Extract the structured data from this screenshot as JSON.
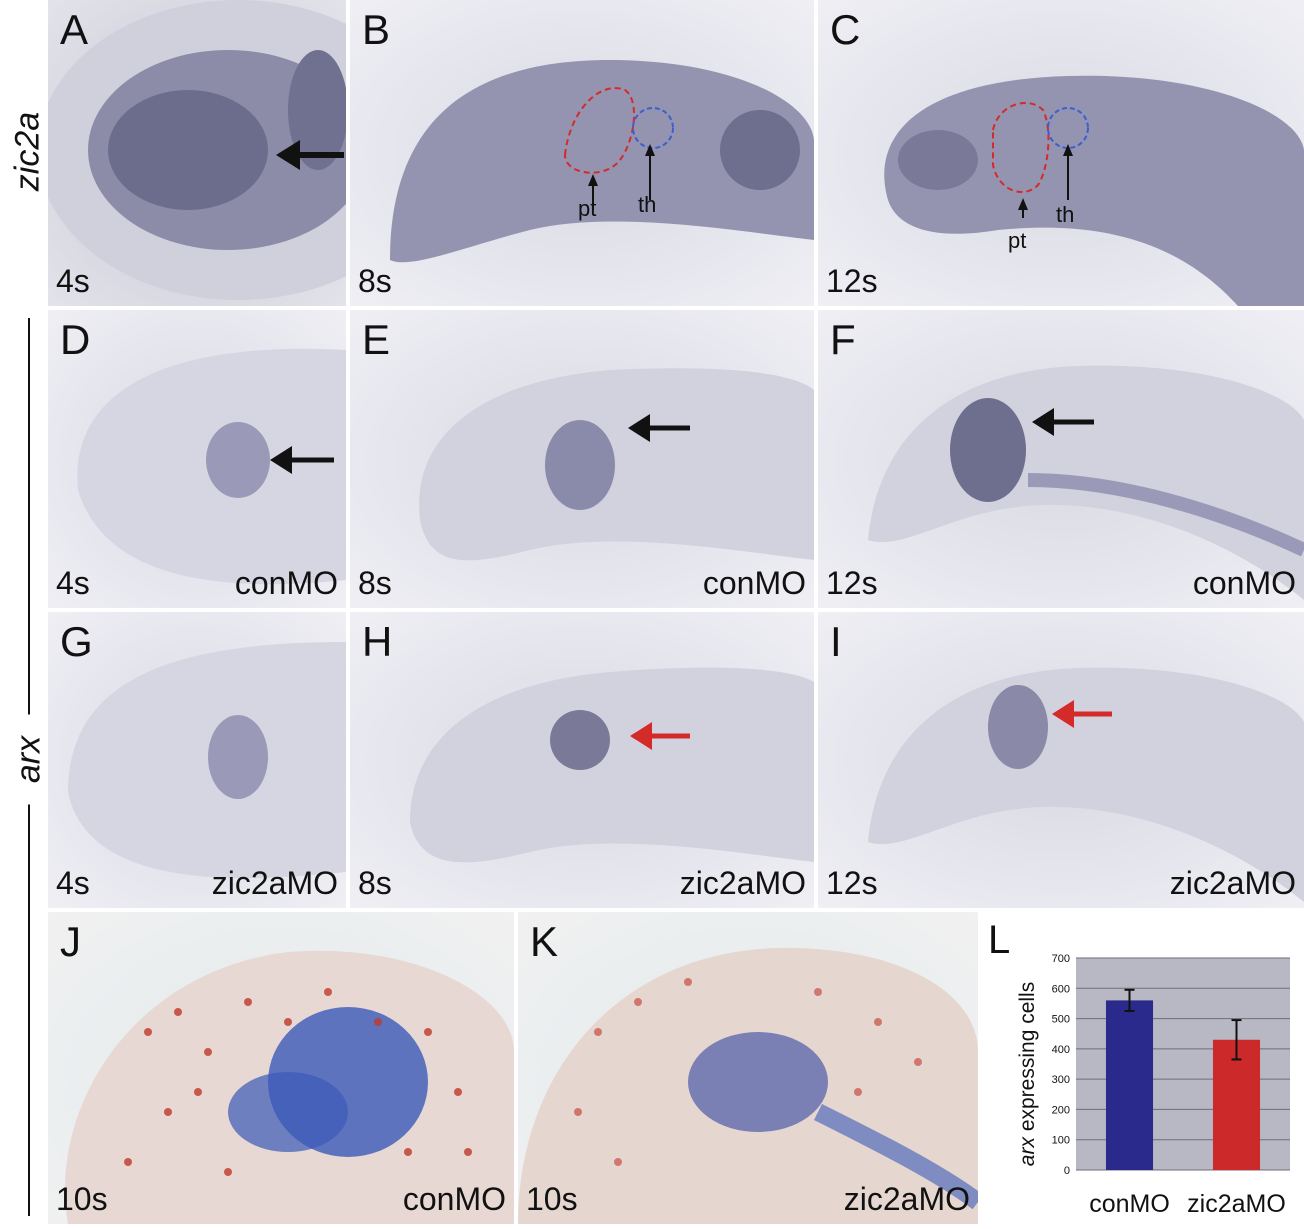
{
  "figure": {
    "gene_label_top": "zic2a",
    "gene_label_side": "arx",
    "panels": [
      {
        "letter": "A",
        "stage": "4s",
        "treatment": ""
      },
      {
        "letter": "B",
        "stage": "8s",
        "treatment": "",
        "labels": [
          "pt",
          "th"
        ]
      },
      {
        "letter": "C",
        "stage": "12s",
        "treatment": "",
        "labels": [
          "pt",
          "th"
        ]
      },
      {
        "letter": "D",
        "stage": "4s",
        "treatment": "conMO"
      },
      {
        "letter": "E",
        "stage": "8s",
        "treatment": "conMO"
      },
      {
        "letter": "F",
        "stage": "12s",
        "treatment": "conMO"
      },
      {
        "letter": "G",
        "stage": "4s",
        "treatment": "zic2aMO"
      },
      {
        "letter": "H",
        "stage": "8s",
        "treatment": "zic2aMO"
      },
      {
        "letter": "I",
        "stage": "12s",
        "treatment": "zic2aMO"
      },
      {
        "letter": "J",
        "stage": "10s",
        "treatment": "conMO"
      },
      {
        "letter": "K",
        "stage": "10s",
        "treatment": "zic2aMO"
      },
      {
        "letter": "L"
      }
    ],
    "colors": {
      "arrow_black": "#111111",
      "arrow_red": "#d42a2a",
      "outline_red": "#d42a2a",
      "outline_blue": "#3a5fd0",
      "bar_conMO": "#2a2a8c",
      "bar_zic2aMO": "#cc2a2a",
      "plot_bg": "#b8b8c4"
    }
  },
  "chart_data": {
    "type": "bar",
    "categories": [
      "conMO",
      "zic2aMO"
    ],
    "values": [
      560,
      430
    ],
    "error": [
      35,
      65
    ],
    "ylabel_italic": "arx",
    "ylabel_rest": " expressing cells",
    "ylim": [
      0,
      700
    ],
    "yticks": [
      "0",
      "100",
      "200",
      "300",
      "400",
      "500",
      "600",
      "700"
    ],
    "grid": true
  }
}
